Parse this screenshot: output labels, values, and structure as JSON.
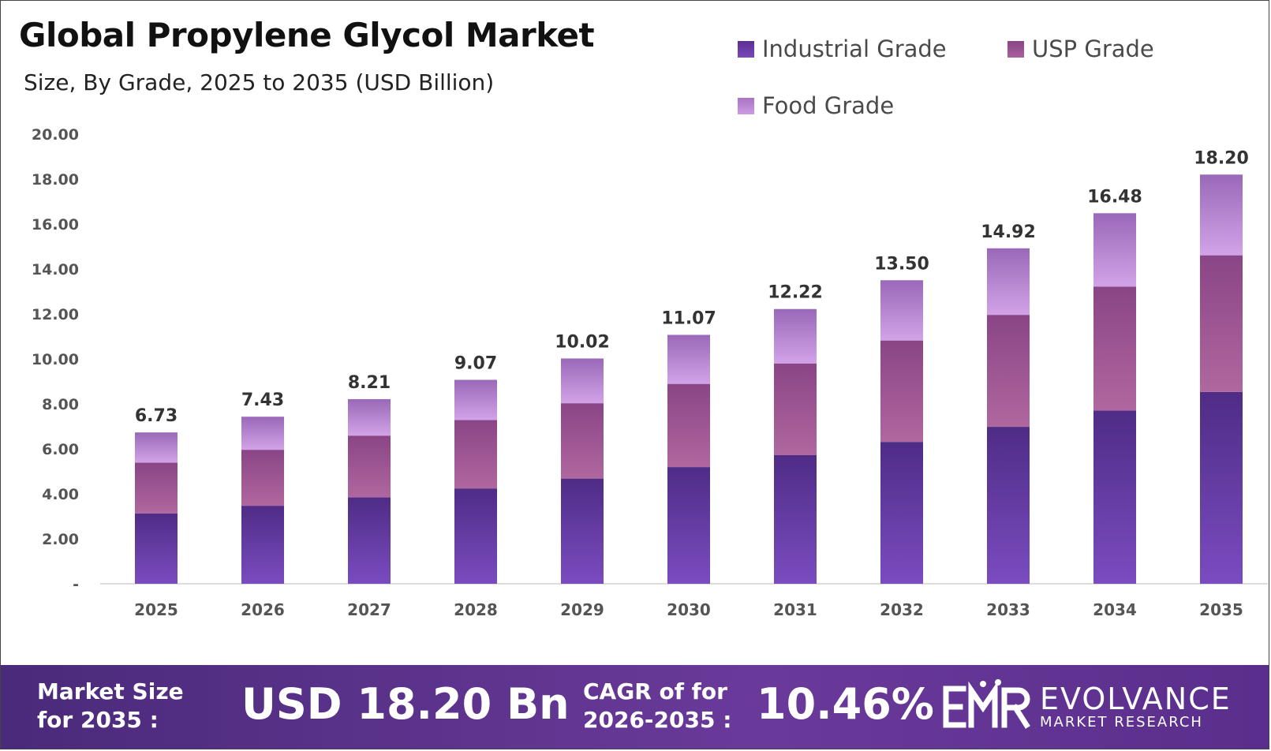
{
  "chart_data": {
    "type": "bar",
    "stacked": true,
    "title": "Global Propylene Glycol Market",
    "subtitle": "Size, By Grade, 2025 to 2035 (USD Billion)",
    "categories": [
      "2025",
      "2026",
      "2027",
      "2028",
      "2029",
      "2030",
      "2031",
      "2032",
      "2033",
      "2034",
      "2035"
    ],
    "series": [
      {
        "name": "Industrial Grade",
        "color": "#6a3ea8",
        "values": [
          3.13,
          3.47,
          3.84,
          4.24,
          4.68,
          5.19,
          5.72,
          6.31,
          6.98,
          7.71,
          8.53
        ]
      },
      {
        "name": "USP Grade",
        "color": "#9a4f92",
        "values": [
          2.26,
          2.49,
          2.75,
          3.04,
          3.35,
          3.7,
          4.08,
          4.51,
          4.98,
          5.51,
          6.08
        ]
      },
      {
        "name": "Food Grade",
        "color": "#c08ad8",
        "values": [
          1.34,
          1.47,
          1.62,
          1.79,
          1.99,
          2.18,
          2.42,
          2.68,
          2.96,
          3.26,
          3.59
        ]
      }
    ],
    "totals": [
      "6.73",
      "7.43",
      "8.21",
      "9.07",
      "10.02",
      "11.07",
      "12.22",
      "13.50",
      "14.92",
      "16.48",
      "18.20"
    ],
    "y_ticks": [
      "-",
      "2.00",
      "4.00",
      "6.00",
      "8.00",
      "10.00",
      "12.00",
      "14.00",
      "16.00",
      "18.00",
      "20.00"
    ],
    "ylim": [
      0,
      20
    ],
    "grid": false,
    "legend_position": "top-right"
  },
  "footer": {
    "market_size_label_1": "Market Size",
    "market_size_label_2": "for 2035 :",
    "market_size_value": "USD 18.20 Bn",
    "cagr_label_1": "CAGR of for",
    "cagr_label_2": "2026-2035 :",
    "cagr_value": "10.46%",
    "brand_name": "EVOLVANCE",
    "brand_sub": "MARKET RESEARCH",
    "background_color": "#5a2e8c"
  }
}
